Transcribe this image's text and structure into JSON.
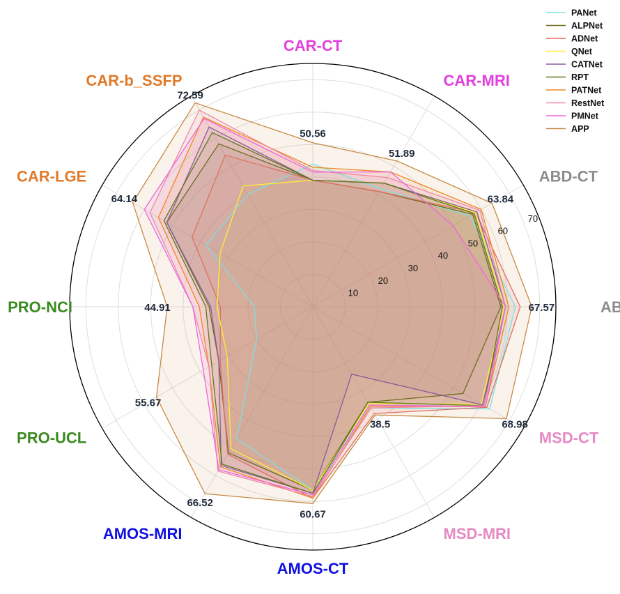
{
  "chart_data": {
    "type": "radar",
    "rmax": 75,
    "radial_ticks": [
      10,
      20,
      30,
      40,
      50,
      60,
      70
    ],
    "legend_position": "top-right",
    "grid": true,
    "axes": [
      {
        "name": "ABD-MRI",
        "max_label": "67.57",
        "max": 67.57,
        "color": "#8c8c8c"
      },
      {
        "name": "ABD-CT",
        "max_label": "63.84",
        "max": 63.84,
        "color": "#8c8c8c"
      },
      {
        "name": "CAR-MRI",
        "max_label": "51.89",
        "max": 51.89,
        "color": "#e040e0"
      },
      {
        "name": "CAR-CT",
        "max_label": "50.56",
        "max": 50.56,
        "color": "#e040e0"
      },
      {
        "name": "CAR-b_SSFP",
        "max_label": "72.59",
        "max": 72.59,
        "color": "#e07a2a"
      },
      {
        "name": "CAR-LGE",
        "max_label": "64.14",
        "max": 64.14,
        "color": "#e07a2a"
      },
      {
        "name": "PRO-NCI",
        "max_label": "44.91",
        "max": 44.91,
        "color": "#3a8a20"
      },
      {
        "name": "PRO-UCL",
        "max_label": "55.67",
        "max": 55.67,
        "color": "#3a8a20"
      },
      {
        "name": "AMOS-MRI",
        "max_label": "66.52",
        "max": 66.52,
        "color": "#1010e0"
      },
      {
        "name": "AMOS-CT",
        "max_label": "60.67",
        "max": 60.67,
        "color": "#1010e0"
      },
      {
        "name": "MSD-MRI",
        "max_label": "38.5",
        "max": 38.5,
        "color": "#e68ac4"
      },
      {
        "name": "MSD-CT",
        "max_label": "68.98",
        "max": 68.98,
        "color": "#e68ac4"
      }
    ],
    "series": [
      {
        "name": "PANet",
        "color": "#7de0e0",
        "values": [
          62.5,
          56.0,
          42.0,
          44.0,
          40.0,
          38.0,
          18.0,
          20.0,
          47.0,
          56.5,
          36.0,
          63.0
        ]
      },
      {
        "name": "ALPNet",
        "color": "#6b6b1e",
        "values": [
          58.0,
          57.0,
          41.0,
          39.0,
          58.0,
          52.0,
          32.0,
          33.5,
          52.0,
          56.5,
          34.0,
          53.5
        ]
      },
      {
        "name": "ADNet",
        "color": "#e07060",
        "values": [
          64.0,
          58.0,
          41.0,
          39.0,
          54.0,
          43.0,
          28.5,
          33.0,
          52.5,
          59.0,
          38.0,
          62.0
        ]
      },
      {
        "name": "QNet",
        "color": "#ffee33",
        "values": [
          59.0,
          58.0,
          44.0,
          39.0,
          43.0,
          33.0,
          29.5,
          30.5,
          50.5,
          56.5,
          34.5,
          60.0
        ]
      },
      {
        "name": "CATNet",
        "color": "#8a5a9a",
        "values": [
          59.5,
          58.5,
          44.0,
          39.0,
          64.0,
          52.0,
          31.5,
          33.5,
          56.5,
          57.5,
          24.0,
          60.5
        ]
      },
      {
        "name": "RPT",
        "color": "#5a7a1a",
        "values": [
          58.5,
          57.5,
          44.0,
          39.0,
          62.0,
          53.0,
          33.0,
          36.0,
          56.0,
          57.5,
          34.0,
          61.0
        ]
      },
      {
        "name": "PATNet",
        "color": "#ee8822",
        "values": [
          60.5,
          60.0,
          48.0,
          43.0,
          67.5,
          55.0,
          35.0,
          37.0,
          57.0,
          59.0,
          35.5,
          61.5
        ]
      },
      {
        "name": "RestNet",
        "color": "#ee88aa",
        "values": [
          59.5,
          59.5,
          46.0,
          42.0,
          70.0,
          58.0,
          37.0,
          37.0,
          58.5,
          58.5,
          36.0,
          61.0
        ]
      },
      {
        "name": "PMNet",
        "color": "#ee66dd",
        "values": [
          59.5,
          50.0,
          48.0,
          41.5,
          67.0,
          60.0,
          37.0,
          39.0,
          58.0,
          58.0,
          35.0,
          61.5
        ]
      },
      {
        "name": "APP",
        "color": "#c88a44",
        "values": [
          67.57,
          63.84,
          51.89,
          50.56,
          72.59,
          64.14,
          44.91,
          55.67,
          66.52,
          60.67,
          38.5,
          68.98
        ]
      }
    ]
  }
}
